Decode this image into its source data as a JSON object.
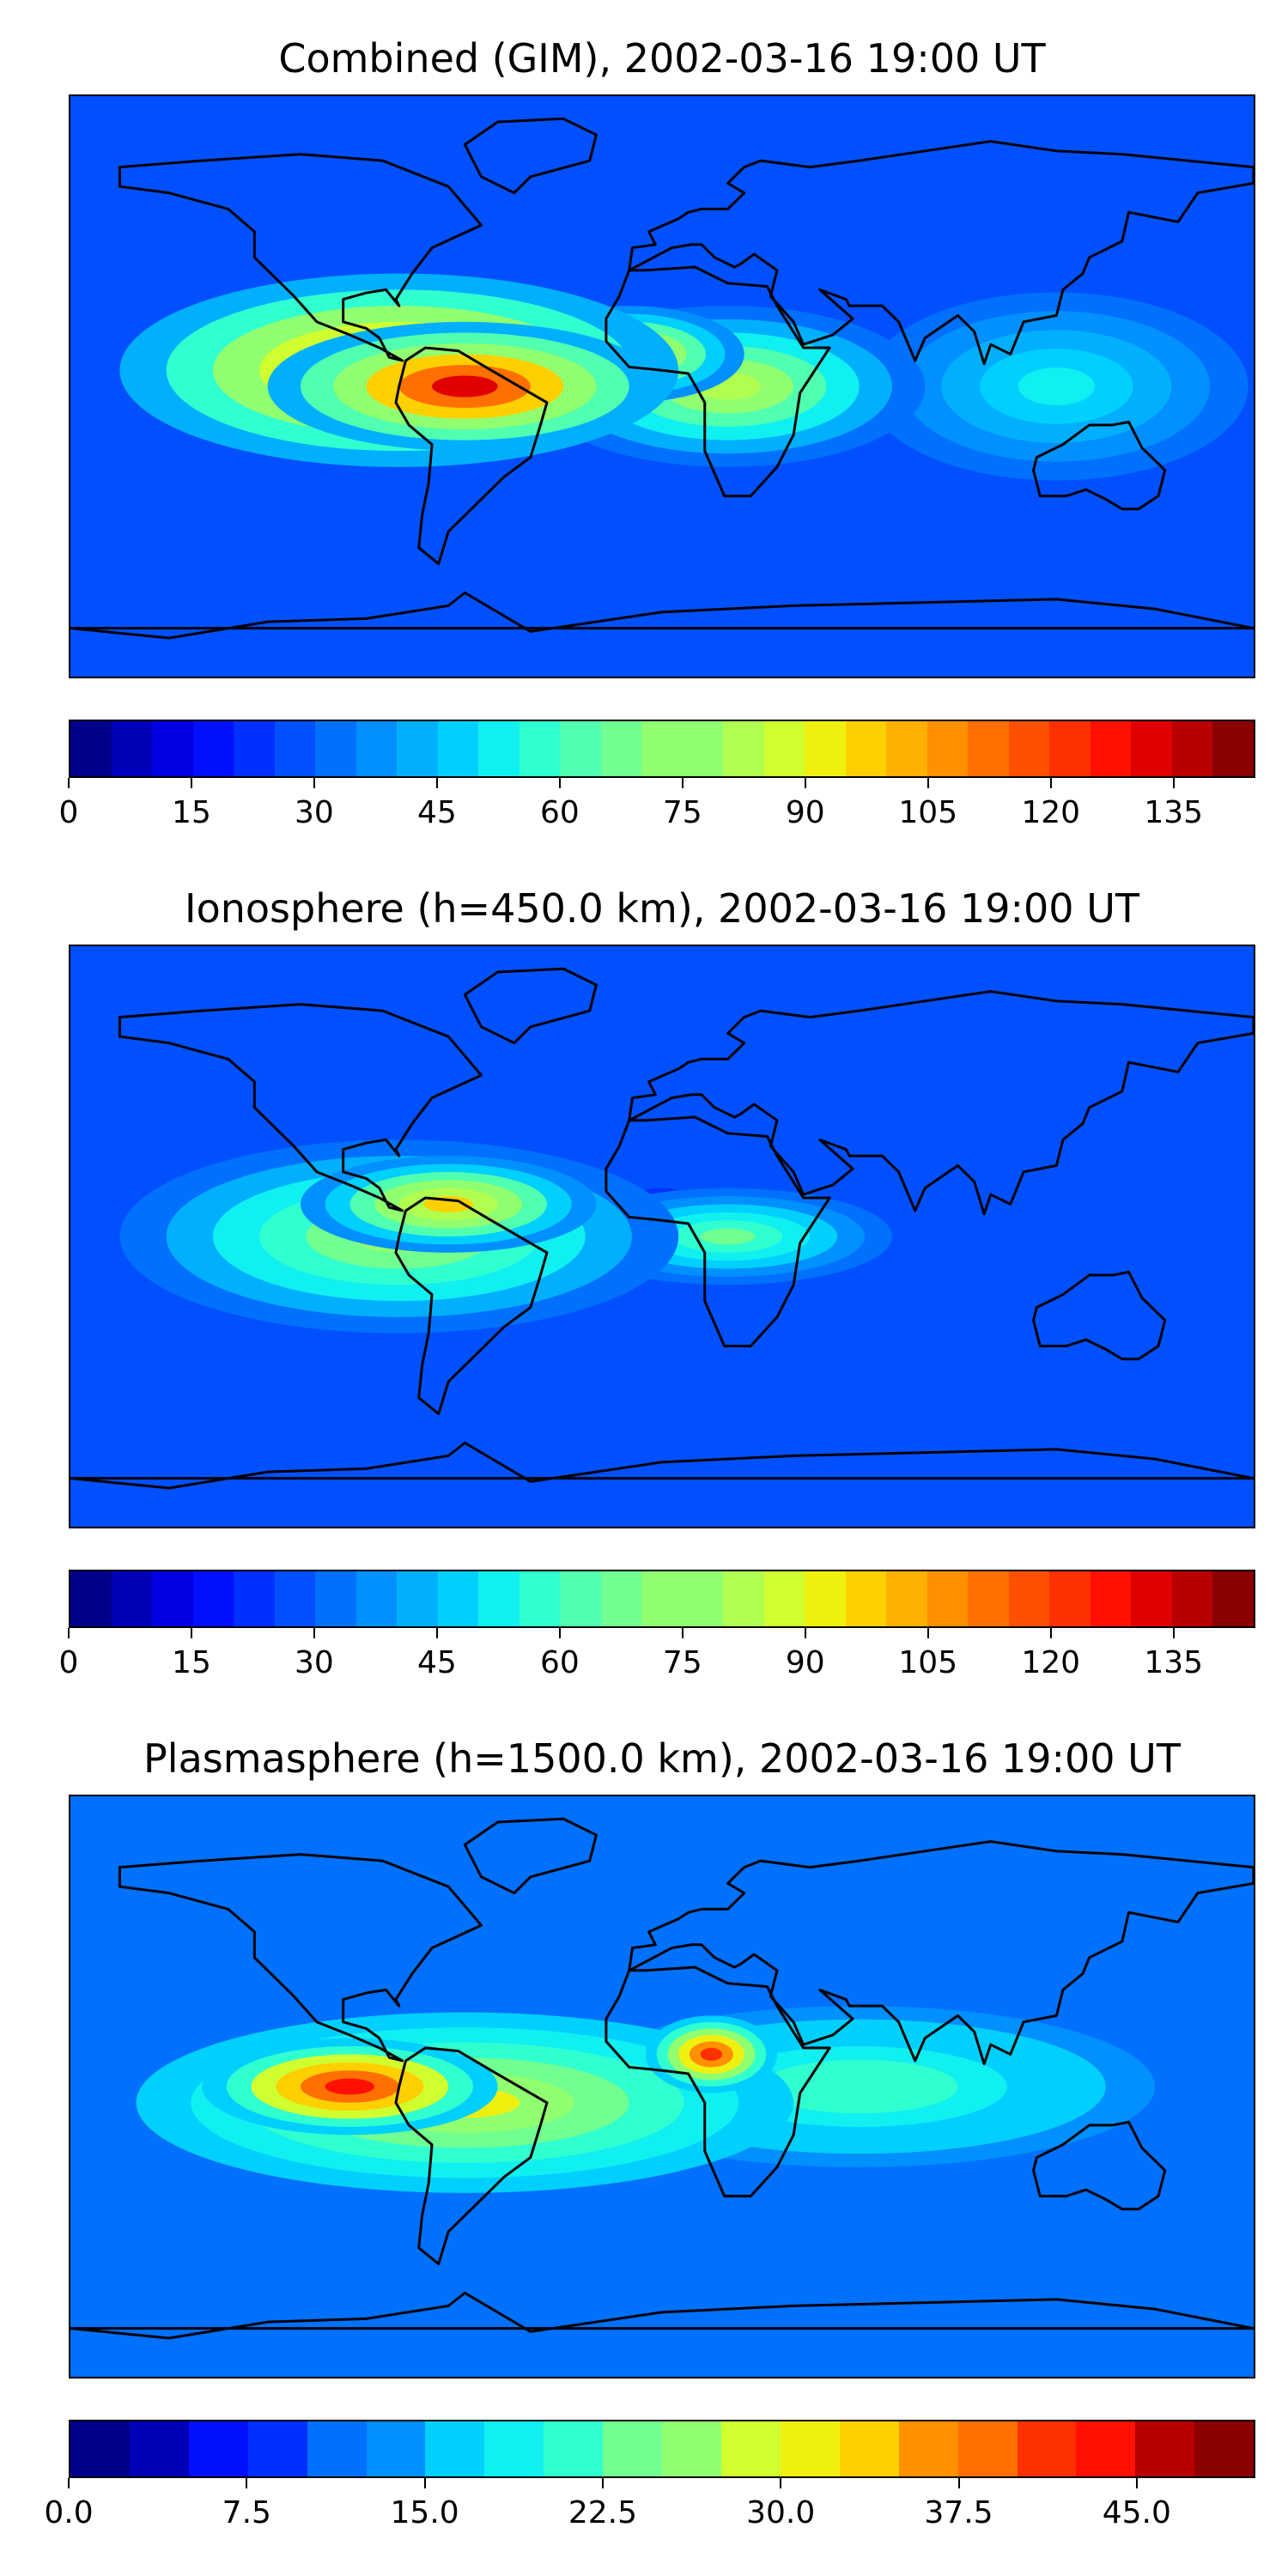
{
  "panels": [
    {
      "title": "Combined (GIM), 2002-03-16 19:00 UT",
      "colorbar": {
        "min": 0,
        "max": 145,
        "step": 5,
        "labels": [
          "0",
          "15",
          "30",
          "45",
          "60",
          "75",
          "90",
          "105",
          "120",
          "135"
        ],
        "label_values": [
          0,
          15,
          30,
          45,
          60,
          75,
          90,
          105,
          120,
          135
        ]
      },
      "blobs": [
        {
          "lon": -60,
          "lat": 0,
          "value": 130,
          "rx": 60,
          "ry": 20
        },
        {
          "lon": -80,
          "lat": 5,
          "value": 115,
          "rx": 85,
          "ry": 30
        },
        {
          "lon": -10,
          "lat": 10,
          "value": 95,
          "rx": 35,
          "ry": 15
        },
        {
          "lon": 20,
          "lat": 0,
          "value": 80,
          "rx": 60,
          "ry": 25
        },
        {
          "lon": 120,
          "lat": 0,
          "value": 50,
          "rx": 70,
          "ry": 35
        }
      ],
      "background_value": 25
    },
    {
      "title": "Ionosphere  (h=450.0 km), 2002-03-16 19:00 UT",
      "colorbar": {
        "min": 0,
        "max": 145,
        "step": 5,
        "labels": [
          "0",
          "15",
          "30",
          "45",
          "60",
          "75",
          "90",
          "105",
          "120",
          "135"
        ],
        "label_values": [
          0,
          15,
          30,
          45,
          60,
          75,
          90,
          105,
          120,
          135
        ]
      },
      "blobs": [
        {
          "lon": -65,
          "lat": 10,
          "value": 95,
          "rx": 45,
          "ry": 15
        },
        {
          "lon": -80,
          "lat": 0,
          "value": 75,
          "rx": 85,
          "ry": 30
        },
        {
          "lon": 20,
          "lat": 0,
          "value": 65,
          "rx": 50,
          "ry": 15
        },
        {
          "lon": 0,
          "lat": 5,
          "value": 15,
          "rx": 15,
          "ry": 10
        }
      ],
      "background_value": 25
    },
    {
      "title": "Plasmasphere (h=1500.0 km), 2002-03-16 19:00 UT",
      "colorbar": {
        "min": 0,
        "max": 50,
        "step": 2.5,
        "labels": [
          "0.0",
          "7.5",
          "15.0",
          "22.5",
          "30.0",
          "37.5",
          "45.0"
        ],
        "label_values": [
          0,
          7.5,
          15,
          22.5,
          30,
          37.5,
          45
        ]
      },
      "blobs": [
        {
          "lon": -95,
          "lat": 0,
          "value": 43,
          "rx": 45,
          "ry": 15
        },
        {
          "lon": 15,
          "lat": 10,
          "value": 40,
          "rx": 20,
          "ry": 12
        },
        {
          "lon": -60,
          "lat": -5,
          "value": 30,
          "rx": 100,
          "ry": 28
        },
        {
          "lon": 60,
          "lat": 0,
          "value": 22,
          "rx": 90,
          "ry": 25
        }
      ],
      "background_value": 12
    }
  ],
  "colors": [
    "#00008b",
    "#0000b8",
    "#0000e0",
    "#0010ff",
    "#0030ff",
    "#0050ff",
    "#0070ff",
    "#0090ff",
    "#00b0ff",
    "#00d0ff",
    "#10f0f0",
    "#30ffd0",
    "#50ffb0",
    "#70ff90",
    "#90ff70",
    "#b0ff50",
    "#d0ff30",
    "#f0f010",
    "#ffd000",
    "#ffb000",
    "#ff9000",
    "#ff7000",
    "#ff5000",
    "#ff3000",
    "#ff1000",
    "#e00000",
    "#b80000",
    "#8b0000"
  ],
  "chart_data": [
    {
      "type": "heatmap",
      "title": "Combined (GIM), 2002-03-16 19:00 UT",
      "colorbar_range": [
        0,
        145
      ]
    },
    {
      "type": "heatmap",
      "title": "Ionosphere  (h=450.0 km), 2002-03-16 19:00 UT",
      "colorbar_range": [
        0,
        145
      ]
    },
    {
      "type": "heatmap",
      "title": "Plasmasphere (h=1500.0 km), 2002-03-16 19:00 UT",
      "colorbar_range": [
        0,
        50
      ]
    }
  ]
}
